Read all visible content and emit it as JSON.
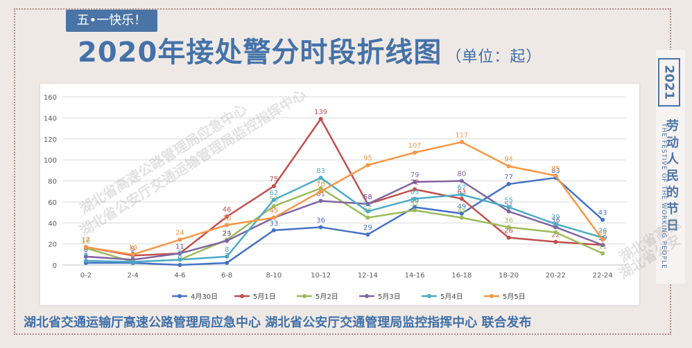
{
  "badge": "五•一快乐！",
  "title": "2020年接处警分时段折线图",
  "unit": "（单位：起）",
  "year": "2021",
  "side_cn": "劳动人民的节日",
  "side_en": "THE FESTIVE OF THE WORKING PEOPLE",
  "footer": "湖北省交通运输厅高速公路管理局应急中心 湖北省公安厅交通管理局监控指挥中心 联合发布",
  "watermarks": [
    "湖北省高速公路管理局应急中心",
    "湖北省公安厅交通运输管理局监控指挥中心",
    "湖北省高速",
    "湖北省公安"
  ],
  "chart_data": {
    "type": "line",
    "categories": [
      "0-2",
      "2-4",
      "4-6",
      "6-8",
      "8-10",
      "10-12",
      "12-14",
      "14-16",
      "16-18",
      "18-20",
      "20-22",
      "22-24"
    ],
    "ylim": [
      0,
      160
    ],
    "yticks": [
      0,
      20,
      40,
      60,
      80,
      100,
      120,
      140,
      160
    ],
    "grid": true,
    "legend_position": "bottom",
    "series": [
      {
        "name": "4月30日",
        "color": "#4472c4",
        "values": [
          2,
          2,
          0,
          2,
          33,
          36,
          29,
          55,
          49,
          77,
          83,
          43
        ]
      },
      {
        "name": "5月1日",
        "color": "#c0504d",
        "values": [
          17,
          9,
          11,
          46,
          75,
          139,
          58,
          72,
          63,
          26,
          22,
          19
        ]
      },
      {
        "name": "5月2日",
        "color": "#9bbb59",
        "values": [
          16,
          3,
          5,
          24,
          56,
          73,
          45,
          52,
          45,
          36,
          31,
          11
        ]
      },
      {
        "name": "5月3日",
        "color": "#8064a2",
        "values": [
          8,
          5,
          11,
          23,
          45,
          61,
          58,
          79,
          80,
          51,
          36,
          19
        ]
      },
      {
        "name": "5月4日",
        "color": "#4bacc6",
        "values": [
          4,
          3,
          5,
          8,
          62,
          83,
          51,
          63,
          67,
          55,
          39,
          26
        ]
      },
      {
        "name": "5月5日",
        "color": "#f79646",
        "values": [
          17,
          10,
          24,
          38,
          45,
          70,
          95,
          107,
          117,
          94,
          85,
          24
        ]
      }
    ]
  }
}
